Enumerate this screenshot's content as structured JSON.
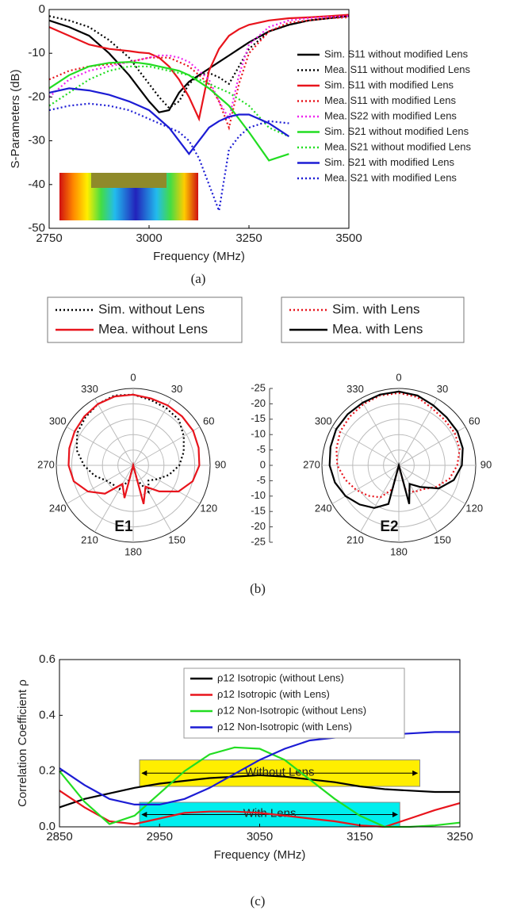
{
  "chart_data": [
    {
      "type": "line",
      "caption": "(a)",
      "xlabel": "Frequency (MHz)",
      "ylabel": "S-Parameters (dB)",
      "x": [
        2750,
        2800,
        2850,
        2900,
        2950,
        2975,
        3000,
        3025,
        3050,
        3075,
        3100,
        3125,
        3150,
        3175,
        3200,
        3225,
        3250,
        3300,
        3350,
        3400,
        3450,
        3500
      ],
      "xlim": [
        2750,
        3500
      ],
      "xticks": [
        2750,
        3000,
        3250,
        3500
      ],
      "ylim": [
        -50,
        0
      ],
      "yticks": [
        -50,
        -40,
        -30,
        -20,
        -10,
        0
      ],
      "grid": false,
      "series": [
        {
          "name": "Sim. S11 without modified Lens",
          "color": "#000000",
          "dash": "solid",
          "values": [
            -2.5,
            -4,
            -6,
            -10,
            -15,
            -18,
            -21,
            -23.5,
            -23,
            -19,
            -16.5,
            -15,
            -13.5,
            -12,
            -10.5,
            -9,
            -7.5,
            -5,
            -3.5,
            -2.5,
            -2,
            -1.5
          ]
        },
        {
          "name": "Mea. S11 without modified Lens",
          "color": "#000000",
          "dash": "dot",
          "values": [
            -1.5,
            -2.5,
            -4,
            -7,
            -11,
            -14,
            -17,
            -20,
            -22.5,
            -21,
            -17,
            -15,
            -14.5,
            -15.5,
            -17,
            -13,
            -9,
            -5,
            -3.5,
            -2.5,
            -2,
            -1.5
          ]
        },
        {
          "name": "Sim. S11 with modified Lens",
          "color": "#e8141c",
          "dash": "solid",
          "values": [
            -4,
            -6,
            -8,
            -9,
            -9.5,
            -9.8,
            -10,
            -11,
            -13,
            -16,
            -20,
            -25,
            -14,
            -9,
            -6,
            -4.5,
            -3.5,
            -2.5,
            -2,
            -1.8,
            -1.5,
            -1.2
          ]
        },
        {
          "name": "Mea. S11 with modified Lens",
          "color": "#e8141c",
          "dash": "dot",
          "values": [
            -16,
            -14,
            -13,
            -12.5,
            -12,
            -11.5,
            -11,
            -11,
            -11,
            -12,
            -13,
            -15,
            -17,
            -21,
            -27,
            -17,
            -10,
            -5,
            -3,
            -2.5,
            -2,
            -1.8
          ]
        },
        {
          "name": "Mea. S22 with modified Lens",
          "color": "#ee22ee",
          "dash": "dot",
          "values": [
            -20,
            -16,
            -14,
            -13,
            -12,
            -11.5,
            -11,
            -10.5,
            -10.5,
            -11,
            -12,
            -14,
            -16,
            -21,
            -25,
            -15,
            -8,
            -4,
            -2.5,
            -2,
            -1.7,
            -1.5
          ]
        },
        {
          "name": "Sim. S21 without modified Lens",
          "color": "#22dd22",
          "dash": "solid",
          "values": [
            -18,
            -15,
            -13,
            -12.2,
            -12,
            -12.2,
            -12.5,
            -13,
            -13.5,
            -14,
            -15,
            -16.5,
            -18,
            -20,
            -22,
            -25,
            -28,
            -34.5,
            -33,
            null,
            null,
            null
          ]
        },
        {
          "name": "Mea. S21 without modified Lens",
          "color": "#22dd22",
          "dash": "dot",
          "values": [
            -22,
            -19,
            -16,
            -14,
            -13,
            -13,
            -13,
            -13.5,
            -14,
            -14.5,
            -15,
            -16,
            -17,
            -18,
            -19,
            -20.5,
            -22,
            -27,
            -29,
            null,
            null,
            null
          ]
        },
        {
          "name": "Sim. S21 with modified Lens",
          "color": "#1c1cd4",
          "dash": "solid",
          "values": [
            -19,
            -18,
            -18.5,
            -19.5,
            -21,
            -22,
            -23,
            -25,
            -27,
            -30,
            -33,
            -30,
            -27,
            -25.5,
            -24.5,
            -24,
            -24,
            -26,
            -29,
            null,
            null,
            null
          ]
        },
        {
          "name": "Mea. S21 with modified Lens",
          "color": "#1c1cd4",
          "dash": "dot",
          "values": [
            -23,
            -22,
            -21.5,
            -22,
            -23,
            -24,
            -25,
            -26,
            -27,
            -28,
            -30,
            -34,
            -40,
            -46,
            -32,
            -29,
            -27,
            -25.5,
            -26,
            null,
            null,
            null
          ]
        }
      ]
    },
    {
      "type": "polar",
      "caption": "(b)",
      "annotation": "E1",
      "rtick_labels": false,
      "theta": [
        0,
        15,
        30,
        45,
        60,
        75,
        90,
        105,
        120,
        135,
        150,
        165,
        180,
        195,
        210,
        225,
        240,
        255,
        270,
        285,
        300,
        315,
        330,
        345
      ],
      "thetaticks": [
        0,
        30,
        60,
        90,
        120,
        150,
        180,
        210,
        240,
        270,
        300,
        330
      ],
      "rlim": [
        -25,
        0
      ],
      "rticks": [
        -25,
        -20,
        -15,
        -10,
        -5,
        0
      ],
      "series": [
        {
          "name": "Sim. without Lens",
          "color": "#000000",
          "dash": "dot",
          "values": [
            -2,
            -3,
            -3.5,
            -4,
            -6,
            -8,
            -10,
            -13,
            -16,
            -18,
            -15,
            -20,
            -25,
            -20,
            -16,
            -16,
            -15,
            -12,
            -9,
            -6,
            -4,
            -3,
            -2,
            -1.5
          ]
        },
        {
          "name": "Mea. without Lens",
          "color": "#e8141c",
          "dash": "solid",
          "values": [
            -2,
            -2.5,
            -2.5,
            -2.5,
            -2.5,
            -3,
            -3.5,
            -5,
            -8,
            -13,
            -17,
            -12,
            -25,
            -14,
            -18,
            -12,
            -8,
            -5,
            -4,
            -3.5,
            -3,
            -2.5,
            -2,
            -1.8
          ]
        }
      ]
    },
    {
      "type": "polar",
      "annotation": "E2",
      "rtick_labels": true,
      "theta": [
        0,
        15,
        30,
        45,
        60,
        75,
        90,
        105,
        120,
        135,
        150,
        165,
        180,
        195,
        210,
        225,
        240,
        255,
        270,
        285,
        300,
        315,
        330,
        345
      ],
      "thetaticks": [
        0,
        30,
        60,
        90,
        120,
        150,
        180,
        210,
        240,
        270,
        300,
        330
      ],
      "rlim": [
        -25,
        0
      ],
      "rticks": [
        -25,
        -20,
        -15,
        -10,
        -5,
        0
      ],
      "series": [
        {
          "name": "Sim. with Lens",
          "color": "#e8141c",
          "dash": "dot",
          "values": [
            -1.5,
            -2,
            -3.5,
            -4,
            -4,
            -4.5,
            -6,
            -8,
            -11,
            -14,
            -15,
            -17,
            -25,
            -17,
            -13,
            -11,
            -9,
            -7,
            -5,
            -4,
            -3,
            -2.5,
            -2,
            -1.5
          ]
        },
        {
          "name": "Mea. with Lens",
          "color": "#000000",
          "dash": "solid",
          "values": [
            -1,
            -1.5,
            -2.5,
            -3,
            -3,
            -3.5,
            -4.5,
            -6.5,
            -10,
            -15,
            -18,
            -12,
            -25,
            -12,
            -9,
            -7,
            -5,
            -3.5,
            -2.5,
            -2,
            -1.5,
            -1.5,
            -1.5,
            -1.2
          ]
        }
      ]
    },
    {
      "type": "line",
      "caption": "(c)",
      "xlabel": "Frequency (MHz)",
      "ylabel": "Correlation Coefficient ρ",
      "x": [
        2850,
        2875,
        2900,
        2925,
        2950,
        2975,
        3000,
        3025,
        3050,
        3075,
        3100,
        3125,
        3150,
        3175,
        3200,
        3225,
        3250
      ],
      "xlim": [
        2850,
        3250
      ],
      "xticks": [
        2850,
        2950,
        3050,
        3150,
        3250
      ],
      "ylim": [
        0,
        0.6
      ],
      "yticks": [
        {
          "value": 0,
          "label": "0.0"
        },
        0.2,
        0.4,
        0.6
      ],
      "grid": false,
      "series": [
        {
          "name": "ρ12 Isotropic (without Lens)",
          "color": "#000000",
          "dash": "solid",
          "values": [
            0.07,
            0.1,
            0.12,
            0.14,
            0.155,
            0.165,
            0.175,
            0.18,
            0.185,
            0.18,
            0.17,
            0.16,
            0.145,
            0.135,
            0.13,
            0.125,
            0.125
          ]
        },
        {
          "name": "ρ12 Isotropic (with Lens)",
          "color": "#e8141c",
          "dash": "solid",
          "values": [
            0.13,
            0.07,
            0.02,
            0.01,
            0.03,
            0.05,
            0.055,
            0.055,
            0.05,
            0.04,
            0.03,
            0.02,
            0.005,
            0.0,
            0.03,
            0.06,
            0.085
          ]
        },
        {
          "name": "ρ12 Non-Isotropic (without Lens)",
          "color": "#22dd22",
          "dash": "solid",
          "values": [
            0.2,
            0.09,
            0.01,
            0.04,
            0.12,
            0.2,
            0.26,
            0.285,
            0.28,
            0.24,
            0.17,
            0.1,
            0.04,
            0.0,
            0.0,
            0.005,
            0.015
          ]
        },
        {
          "name": "ρ12 Non-Isotropic (with Lens)",
          "color": "#1c1cd4",
          "dash": "solid",
          "values": [
            0.21,
            0.15,
            0.1,
            0.08,
            0.08,
            0.1,
            0.14,
            0.19,
            0.24,
            0.28,
            0.31,
            0.32,
            0.33,
            0.33,
            0.335,
            0.34,
            0.34
          ]
        }
      ],
      "annotations": [
        {
          "text": "Without Lens",
          "x": [
            2930,
            3210
          ],
          "y": [
            0.145,
            0.24
          ],
          "color": "#ffee00"
        },
        {
          "text": "With Lens",
          "x": [
            2930,
            3190
          ],
          "y": [
            0,
            0.088
          ],
          "color": "#00eeee"
        }
      ]
    }
  ]
}
